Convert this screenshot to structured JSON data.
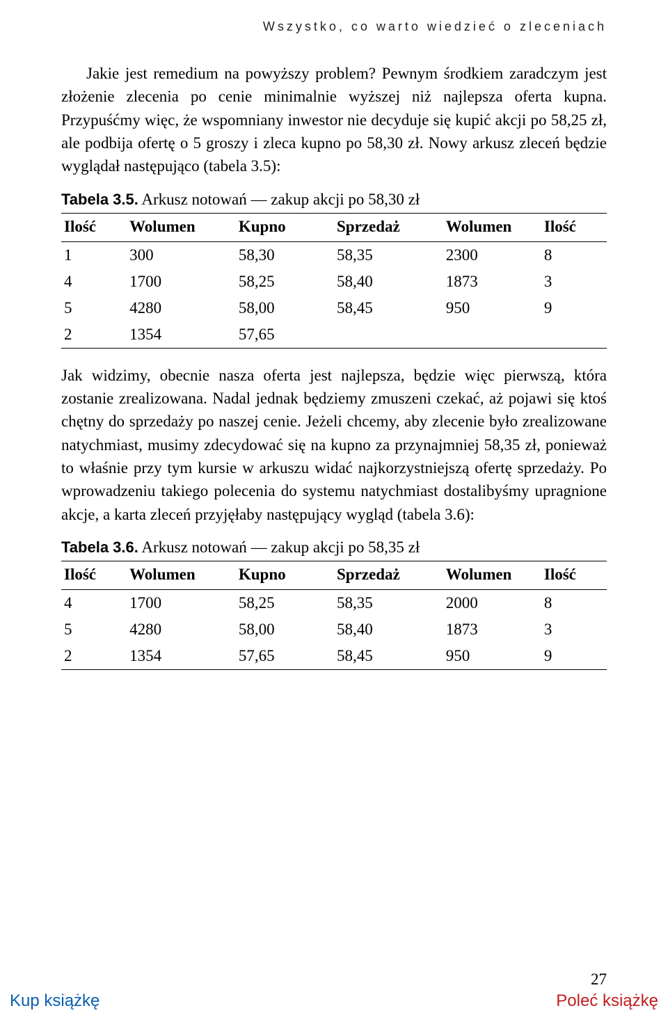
{
  "running_head": "Wszystko, co warto wiedzieć o zleceniach",
  "para1": "Jakie jest remedium na powyższy problem? Pewnym środkiem zaradczym jest złożenie zlecenia po cenie minimalnie wyższej niż najlepsza oferta kupna. Przypuśćmy więc, że wspomniany inwestor nie decyduje się kupić akcji po 58,25 zł, ale podbija ofertę o 5 groszy i zleca kupno po 58,30 zł. Nowy arkusz zleceń będzie wyglądał następująco (tabela 3.5):",
  "table35": {
    "label_bold": "Tabela 3.5.",
    "label_rest": " Arkusz notowań — zakup akcji po 58,30 zł",
    "columns": [
      "Ilość",
      "Wolumen",
      "Kupno",
      "Sprzedaż",
      "Wolumen",
      "Ilość"
    ],
    "col_widths": [
      "12%",
      "20%",
      "18%",
      "20%",
      "18%",
      "12%"
    ],
    "rows": [
      [
        "1",
        "300",
        "58,30",
        "58,35",
        "2300",
        "8"
      ],
      [
        "4",
        "1700",
        "58,25",
        "58,40",
        "1873",
        "3"
      ],
      [
        "5",
        "4280",
        "58,00",
        "58,45",
        "950",
        "9"
      ],
      [
        "2",
        "1354",
        "57,65",
        "",
        "",
        ""
      ]
    ]
  },
  "para2": "Jak widzimy, obecnie nasza oferta jest najlepsza, będzie więc pierwszą, która zostanie zrealizowana. Nadal jednak będziemy zmuszeni czekać, aż pojawi się ktoś chętny do sprzedaży po naszej cenie. Jeżeli chcemy, aby zlecenie było zrealizowane natychmiast, musimy zdecydować się na kupno za przynajmniej 58,35 zł, ponieważ to właśnie przy tym kursie w arkuszu widać najkorzystniejszą ofertę sprzedaży. Po wprowadzeniu takiego polecenia do systemu natychmiast dostalibyśmy upragnione akcje, a karta zleceń przyjęłaby następujący wygląd (tabela 3.6):",
  "table36": {
    "label_bold": "Tabela 3.6.",
    "label_rest": " Arkusz notowań — zakup akcji po 58,35 zł",
    "columns": [
      "Ilość",
      "Wolumen",
      "Kupno",
      "Sprzedaż",
      "Wolumen",
      "Ilość"
    ],
    "col_widths": [
      "12%",
      "20%",
      "18%",
      "20%",
      "18%",
      "12%"
    ],
    "rows": [
      [
        "4",
        "1700",
        "58,25",
        "58,35",
        "2000",
        "8"
      ],
      [
        "5",
        "4280",
        "58,00",
        "58,40",
        "1873",
        "3"
      ],
      [
        "2",
        "1354",
        "57,65",
        "58,45",
        "950",
        "9"
      ]
    ]
  },
  "page_number": "27",
  "footer": {
    "buy": "Kup książkę",
    "recommend": "Poleć książkę"
  }
}
